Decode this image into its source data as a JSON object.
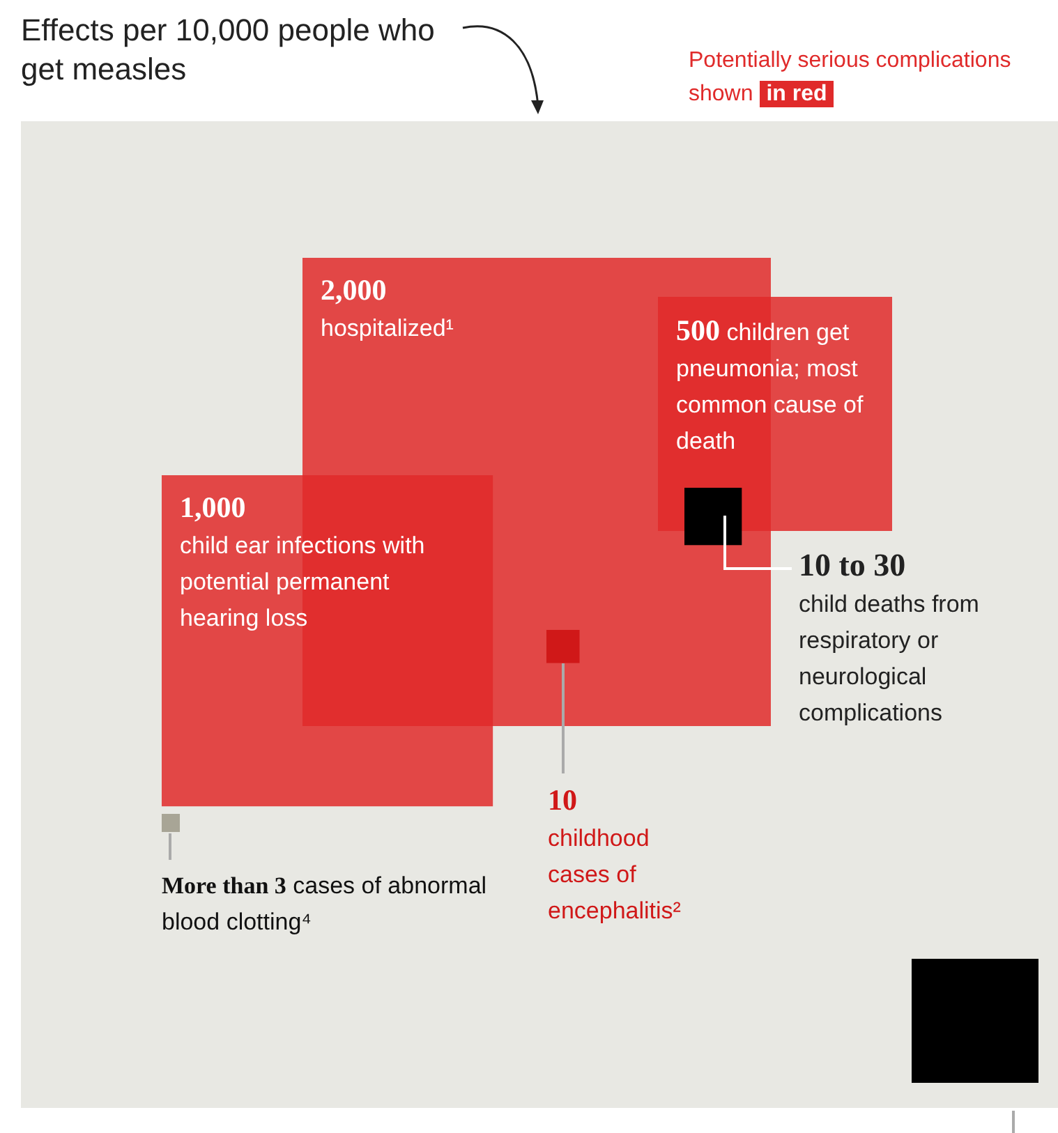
{
  "chart_data": {
    "type": "other",
    "title": "Effects per 10,000 people who get measles",
    "annotations": [
      "Potentially serious complications shown",
      "in red"
    ],
    "categories": [
      "hospitalized¹",
      "child ear infections with potential permanent hearing loss",
      "children get pneumonia; most common cause of death",
      "childhood cases of encephalitis²",
      "cases of abnormal blood clotting⁴",
      "child deaths from respiratory or neurological complications"
    ],
    "values": [
      2000,
      1000,
      500,
      10,
      3,
      30
    ],
    "value_labels": [
      "2,000",
      "1,000",
      "500",
      "10",
      "More than 3",
      "10 to 30"
    ],
    "colors": [
      "#e02a2a",
      "#e02a2a",
      "#e02a2a",
      "#d01818",
      "#a8a596",
      "#000000"
    ]
  }
}
